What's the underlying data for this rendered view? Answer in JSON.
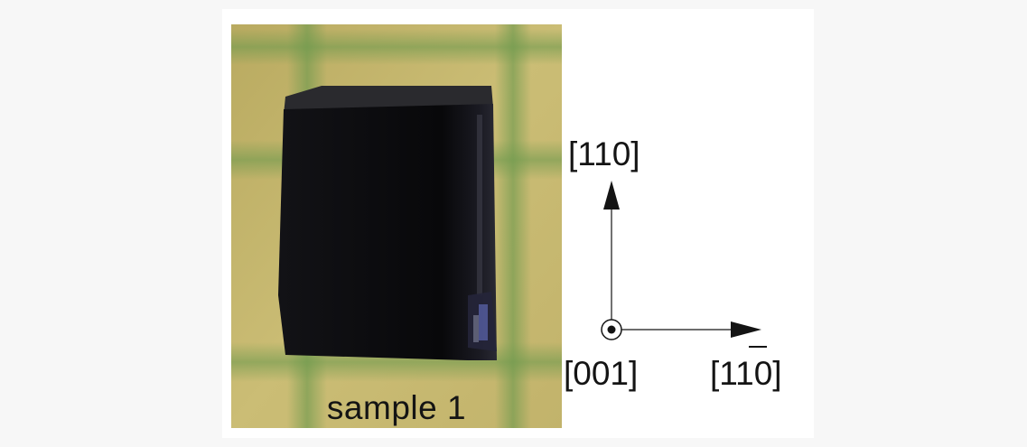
{
  "figure": {
    "sample_label": "sample 1",
    "axes": {
      "vertical_label": "[110]",
      "origin_label": "[001]",
      "horizontal_label": "[110]",
      "horizontal_overbar_note": "1 0"
    },
    "colors": {
      "background": "#f7f7f7",
      "panel": "#ffffff",
      "photo_background": "#c7b86e",
      "sample": "#0b0b0e",
      "text": "#141414"
    }
  }
}
